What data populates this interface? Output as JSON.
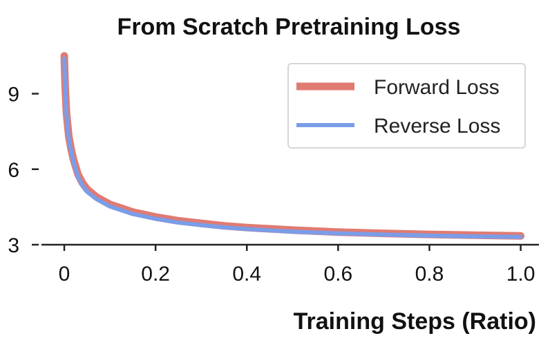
{
  "chart_data": {
    "type": "line",
    "title": "From Scratch Pretraining Loss",
    "xlabel": "Training Steps (Ratio)",
    "ylabel": "",
    "xlim": [
      -0.05,
      1.04
    ],
    "ylim": [
      3,
      10.8
    ],
    "x_ticks": [
      0,
      0.2,
      0.4,
      0.6,
      0.8,
      1.0
    ],
    "x_tick_labels": [
      "0",
      "0.2",
      "0.4",
      "0.6",
      "0.8",
      "1.0"
    ],
    "y_ticks": [
      3,
      6,
      9
    ],
    "y_tick_labels": [
      "3",
      "6",
      "9"
    ],
    "grid": false,
    "legend_position": "top-right",
    "series": [
      {
        "name": "Forward Loss",
        "color": "#e07b72",
        "x": [
          0,
          0.002,
          0.005,
          0.01,
          0.015,
          0.02,
          0.03,
          0.04,
          0.05,
          0.07,
          0.1,
          0.15,
          0.2,
          0.25,
          0.3,
          0.35,
          0.4,
          0.5,
          0.6,
          0.7,
          0.8,
          0.9,
          1.0
        ],
        "y": [
          10.5,
          9.3,
          8.2,
          7.3,
          6.8,
          6.4,
          5.8,
          5.45,
          5.2,
          4.9,
          4.6,
          4.3,
          4.1,
          3.95,
          3.85,
          3.75,
          3.68,
          3.58,
          3.5,
          3.45,
          3.41,
          3.38,
          3.35
        ]
      },
      {
        "name": "Reverse Loss",
        "color": "#7b9de8",
        "x": [
          0,
          0.002,
          0.005,
          0.01,
          0.015,
          0.02,
          0.03,
          0.04,
          0.05,
          0.07,
          0.1,
          0.15,
          0.2,
          0.25,
          0.3,
          0.35,
          0.4,
          0.5,
          0.6,
          0.7,
          0.8,
          0.9,
          1.0
        ],
        "y": [
          10.4,
          9.2,
          8.1,
          7.2,
          6.7,
          6.3,
          5.7,
          5.35,
          5.1,
          4.82,
          4.52,
          4.22,
          4.03,
          3.88,
          3.78,
          3.69,
          3.62,
          3.52,
          3.45,
          3.4,
          3.36,
          3.33,
          3.31
        ]
      }
    ]
  }
}
